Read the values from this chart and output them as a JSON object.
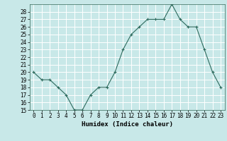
{
  "x": [
    0,
    1,
    2,
    3,
    4,
    5,
    6,
    7,
    8,
    9,
    10,
    11,
    12,
    13,
    14,
    15,
    16,
    17,
    18,
    19,
    20,
    21,
    22,
    23
  ],
  "y": [
    20,
    19,
    19,
    18,
    17,
    15,
    15,
    17,
    18,
    18,
    20,
    23,
    25,
    26,
    27,
    27,
    27,
    29,
    27,
    26,
    26,
    23,
    20,
    18
  ],
  "xlabel": "Humidex (Indice chaleur)",
  "ylim": [
    15,
    29
  ],
  "yticks": [
    15,
    16,
    17,
    18,
    19,
    20,
    21,
    22,
    23,
    24,
    25,
    26,
    27,
    28
  ],
  "xtick_labels": [
    "0",
    "1",
    "2",
    "3",
    "4",
    "5",
    "6",
    "7",
    "8",
    "9",
    "10",
    "11",
    "12",
    "13",
    "14",
    "15",
    "16",
    "17",
    "18",
    "19",
    "20",
    "21",
    "22",
    "23"
  ],
  "line_color": "#2e6b5e",
  "marker": "+",
  "bg_color": "#c8e8e8",
  "grid_color": "#e8f8f8",
  "tick_fontsize": 5.5,
  "xlabel_fontsize": 6.5
}
